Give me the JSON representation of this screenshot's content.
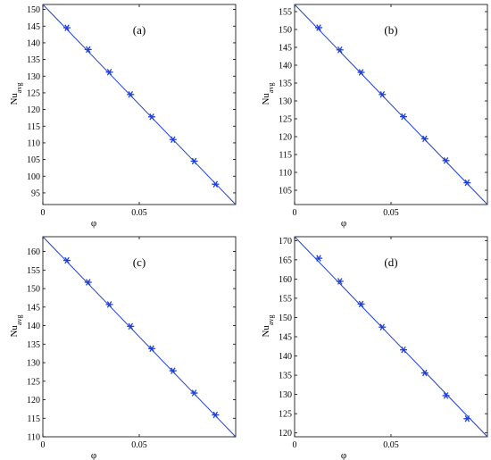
{
  "chart_data": [
    {
      "type": "line",
      "panel_label": "(a)",
      "xlabel": "φ",
      "ylabel": "Nu",
      "ylabel_sub": "avg",
      "xlim": [
        0,
        0.1
      ],
      "ylim": [
        91.5,
        151.5
      ],
      "xticks": [
        0,
        0.05
      ],
      "xtick_labels": [
        "0",
        "0.05"
      ],
      "yticks": [
        95,
        100,
        105,
        110,
        115,
        120,
        125,
        130,
        135,
        140,
        145,
        150
      ],
      "grid": false,
      "line_x": [
        0,
        0.1
      ],
      "line_y": [
        151.5,
        91.5
      ],
      "markers_x": [
        0.0125,
        0.0235,
        0.0345,
        0.0455,
        0.0565,
        0.0675,
        0.0785,
        0.0895
      ],
      "markers_y": [
        144.5,
        138.0,
        131.2,
        124.5,
        117.8,
        111.0,
        104.5,
        97.6
      ],
      "marker": "asterisk",
      "color": "#1f3fd6"
    },
    {
      "type": "line",
      "panel_label": "(b)",
      "xlabel": "φ",
      "ylabel": "Nu",
      "ylabel_sub": "avg",
      "xlim": [
        0,
        0.1
      ],
      "ylim": [
        101,
        157
      ],
      "xticks": [
        0,
        0.05
      ],
      "xtick_labels": [
        "0",
        "0.05"
      ],
      "yticks": [
        105,
        110,
        115,
        120,
        125,
        130,
        135,
        140,
        145,
        150,
        155
      ],
      "grid": false,
      "line_x": [
        0,
        0.1
      ],
      "line_y": [
        157,
        101
      ],
      "markers_x": [
        0.0125,
        0.0235,
        0.0345,
        0.0455,
        0.0565,
        0.0675,
        0.0785,
        0.0895
      ],
      "markers_y": [
        150.5,
        144.3,
        138.0,
        131.8,
        125.6,
        119.4,
        113.3,
        107.1
      ],
      "marker": "asterisk",
      "color": "#1f3fd6"
    },
    {
      "type": "line",
      "panel_label": "(c)",
      "xlabel": "φ",
      "ylabel": "Nu",
      "ylabel_sub": "avg",
      "xlim": [
        0,
        0.1
      ],
      "ylim": [
        110,
        164
      ],
      "xticks": [
        0,
        0.05
      ],
      "xtick_labels": [
        "0",
        "0.05"
      ],
      "yticks": [
        110,
        115,
        120,
        125,
        130,
        135,
        140,
        145,
        150,
        155,
        160
      ],
      "grid": false,
      "line_x": [
        0,
        0.1
      ],
      "line_y": [
        164,
        110
      ],
      "markers_x": [
        0.0125,
        0.0235,
        0.0345,
        0.0455,
        0.0565,
        0.0675,
        0.0785,
        0.0895
      ],
      "markers_y": [
        157.6,
        151.7,
        145.7,
        139.8,
        133.8,
        127.8,
        121.8,
        115.9
      ],
      "marker": "asterisk",
      "color": "#1f3fd6"
    },
    {
      "type": "line",
      "panel_label": "(d)",
      "xlabel": "φ",
      "ylabel": "Nu",
      "ylabel_sub": "avg",
      "xlim": [
        0,
        0.1
      ],
      "ylim": [
        119,
        171
      ],
      "xticks": [
        0,
        0.05
      ],
      "xtick_labels": [
        "0",
        "0.05"
      ],
      "yticks": [
        120,
        125,
        130,
        135,
        140,
        145,
        150,
        155,
        160,
        165,
        170
      ],
      "grid": false,
      "line_x": [
        0,
        0.1
      ],
      "line_y": [
        171,
        119
      ],
      "markers_x": [
        0.0125,
        0.0235,
        0.0345,
        0.0455,
        0.0565,
        0.0675,
        0.0785,
        0.0895
      ],
      "markers_y": [
        165.4,
        159.4,
        153.5,
        147.5,
        141.6,
        135.6,
        129.7,
        123.7
      ],
      "marker": "asterisk",
      "color": "#1f3fd6"
    }
  ]
}
